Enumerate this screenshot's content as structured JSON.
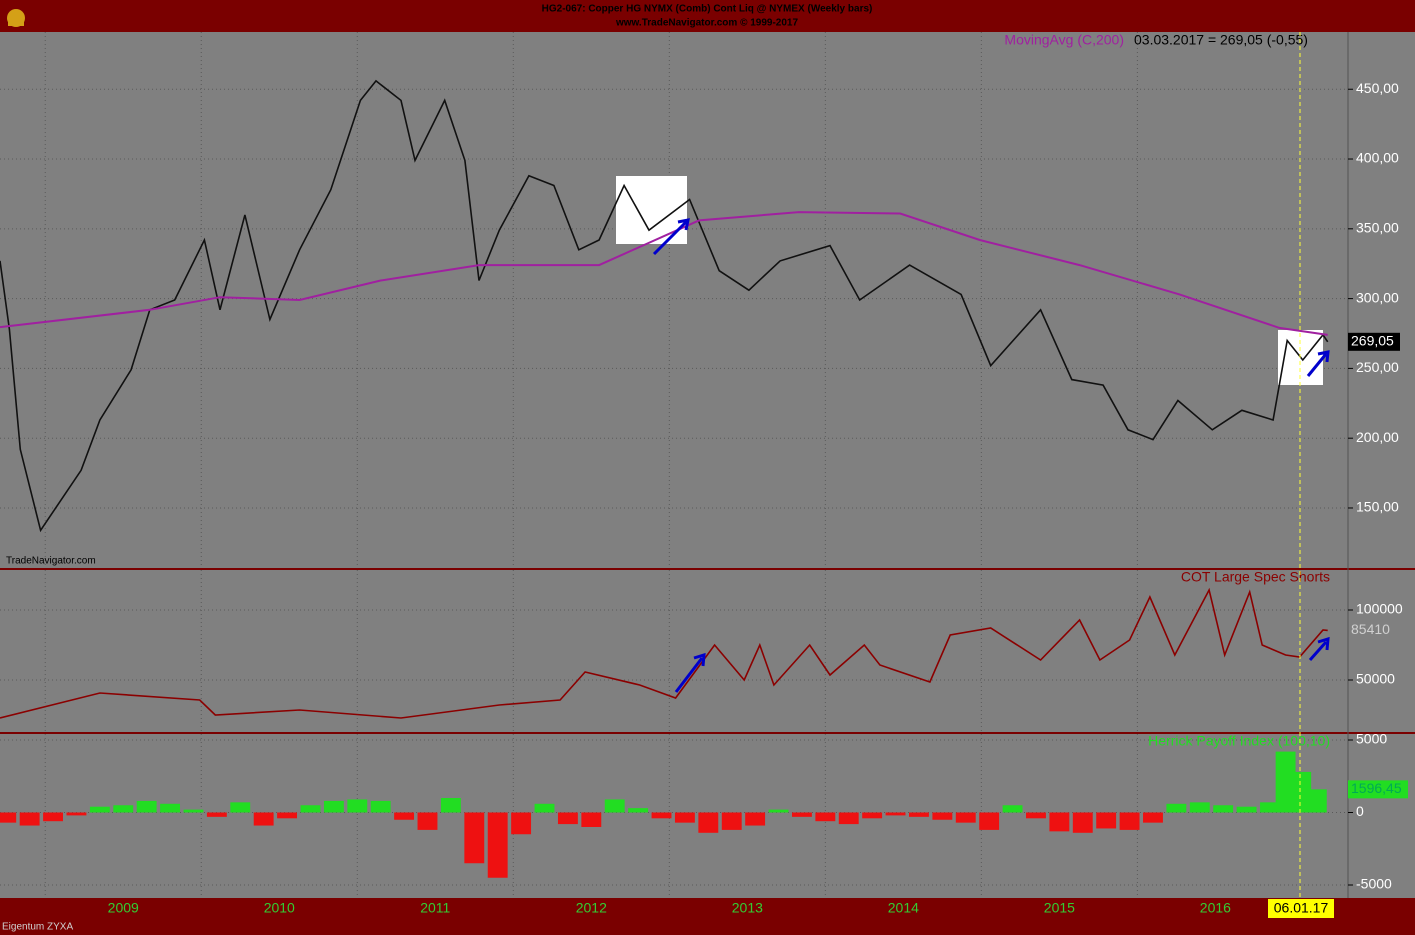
{
  "header": {
    "title": "HG2-067:  Copper HG NYMX (Comb) Cont Liq @ NYMEX  (Weekly bars)",
    "subtitle": "www.TradeNavigator.com © 1999-2017",
    "watermark": "TradeNavigator.com",
    "footer": "Eigentum ZYXA",
    "marker_label": "06.01.17"
  },
  "chart_data": [
    {
      "type": "line",
      "legend_text": "03.03.2017 = 269,05 (-0,55)",
      "last_value_label": "269,05",
      "grid": true,
      "xlim": [
        2008.71,
        2017.35
      ],
      "ylim": [
        107,
        491
      ],
      "yticks": [
        {
          "value": 150,
          "label": "150,00"
        },
        {
          "value": 200,
          "label": "200,00"
        },
        {
          "value": 250,
          "label": "250,00"
        },
        {
          "value": 300,
          "label": "300,00"
        },
        {
          "value": 350,
          "label": "350,00"
        },
        {
          "value": 400,
          "label": "400,00"
        },
        {
          "value": 450,
          "label": "450,00"
        }
      ],
      "series": [
        {
          "name": "Copper",
          "color": "#111111",
          "x": [
            2008.71,
            2008.77,
            2008.84,
            2008.97,
            2009.23,
            2009.35,
            2009.55,
            2009.67,
            2009.83,
            2010.02,
            2010.12,
            2010.28,
            2010.44,
            2010.63,
            2010.83,
            2011.02,
            2011.12,
            2011.28,
            2011.37,
            2011.56,
            2011.69,
            2011.78,
            2011.91,
            2012.1,
            2012.26,
            2012.42,
            2012.55,
            2012.71,
            2012.87,
            2013.13,
            2013.32,
            2013.51,
            2013.71,
            2014.03,
            2014.22,
            2014.54,
            2014.87,
            2015.06,
            2015.38,
            2015.58,
            2015.78,
            2015.94,
            2016.1,
            2016.26,
            2016.48,
            2016.67,
            2016.87,
            2016.96,
            2017.06,
            2017.19,
            2017.22
          ],
          "values": [
            327,
            278,
            192,
            134,
            177,
            213,
            249,
            292,
            299,
            342,
            292,
            360,
            285,
            335,
            378,
            442,
            456,
            442,
            399,
            442,
            399,
            313,
            349,
            388,
            381,
            335,
            342,
            381,
            349,
            371,
            320,
            306,
            327,
            338,
            299,
            324,
            303,
            252,
            292,
            242,
            238,
            206,
            199,
            227,
            206,
            220,
            213,
            270,
            256,
            274,
            269.05
          ]
        },
        {
          "name": "MovingAvg (C,200)",
          "color": "#a020a0",
          "x": [
            2008.71,
            2009.67,
            2010.12,
            2010.63,
            2011.15,
            2011.78,
            2012.55,
            2013.19,
            2013.83,
            2014.48,
            2014.99,
            2015.63,
            2016.27,
            2016.91,
            2017.22
          ],
          "values": [
            279.6,
            292,
            301,
            299,
            313,
            324,
            324,
            356,
            362,
            361,
            342,
            324,
            303,
            279,
            274
          ]
        }
      ]
    },
    {
      "type": "line",
      "legend_text": "COT Large Spec Shorts",
      "last_value_label": "85410",
      "grid": true,
      "xlim": [
        2008.71,
        2017.35
      ],
      "ylim": [
        12857,
        128571
      ],
      "yticks": [
        50000,
        100000
      ],
      "series": [
        {
          "name": "COT Large Spec Shorts",
          "color": "#8b0000",
          "x": [
            2008.71,
            2009.35,
            2009.99,
            2010.09,
            2010.63,
            2011.28,
            2011.91,
            2012.3,
            2012.46,
            2012.81,
            2013.04,
            2013.29,
            2013.48,
            2013.58,
            2013.67,
            2013.9,
            2014.03,
            2014.25,
            2014.35,
            2014.67,
            2014.8,
            2015.06,
            2015.38,
            2015.63,
            2015.76,
            2015.95,
            2016.08,
            2016.24,
            2016.46,
            2016.56,
            2016.72,
            2016.8,
            2016.95,
            2017.04,
            2017.19,
            2017.22
          ],
          "values": [
            22857,
            40714,
            35714,
            25000,
            28571,
            22857,
            32143,
            35714,
            55714,
            46429,
            37143,
            75000,
            50000,
            75000,
            46429,
            75000,
            53571,
            75000,
            60714,
            48571,
            82143,
            87143,
            64286,
            92857,
            64286,
            78571,
            109286,
            67857,
            114286,
            67857,
            112857,
            75000,
            67857,
            66429,
            85714,
            85410
          ]
        }
      ]
    },
    {
      "type": "bar",
      "legend_text": "Herrick Payoff Index (100,10)",
      "last_value_label": "1596,45",
      "grid": true,
      "xlim": [
        2008.71,
        2017.35
      ],
      "ylim": [
        -5897,
        5414
      ],
      "yticks": [
        -5000,
        0,
        5000
      ],
      "xticks": [
        2009,
        2010,
        2011,
        2012,
        2013,
        2014,
        2015,
        2016
      ],
      "positive_color": "#22dd22",
      "negative_color": "#ee1111",
      "series": [
        {
          "name": "Herrick Payoff Index (100,10)",
          "x": [
            2008.75,
            2008.9,
            2009.05,
            2009.2,
            2009.35,
            2009.5,
            2009.65,
            2009.8,
            2009.95,
            2010.1,
            2010.25,
            2010.4,
            2010.55,
            2010.7,
            2010.85,
            2011.0,
            2011.15,
            2011.3,
            2011.45,
            2011.6,
            2011.75,
            2011.9,
            2012.05,
            2012.2,
            2012.35,
            2012.5,
            2012.65,
            2012.8,
            2012.95,
            2013.1,
            2013.25,
            2013.4,
            2013.55,
            2013.7,
            2013.85,
            2014.0,
            2014.15,
            2014.3,
            2014.45,
            2014.6,
            2014.75,
            2014.9,
            2015.05,
            2015.2,
            2015.35,
            2015.5,
            2015.65,
            2015.8,
            2015.95,
            2016.1,
            2016.25,
            2016.4,
            2016.55,
            2016.7,
            2016.85,
            2016.95,
            2017.05,
            2017.15
          ],
          "values": [
            -700,
            -900,
            -600,
            -200,
            400,
            500,
            800,
            600,
            200,
            -300,
            700,
            -900,
            -400,
            500,
            800,
            900,
            800,
            -500,
            -1200,
            1000,
            -3500,
            -4500,
            -1500,
            600,
            -800,
            -1000,
            900,
            300,
            -400,
            -700,
            -1400,
            -1200,
            -900,
            200,
            -300,
            -600,
            -800,
            -400,
            -200,
            -300,
            -500,
            -700,
            -1200,
            500,
            -400,
            -1300,
            -1400,
            -1100,
            -1200,
            -700,
            600,
            700,
            500,
            400,
            700,
            4200,
            2800,
            1596.45
          ]
        }
      ]
    }
  ]
}
